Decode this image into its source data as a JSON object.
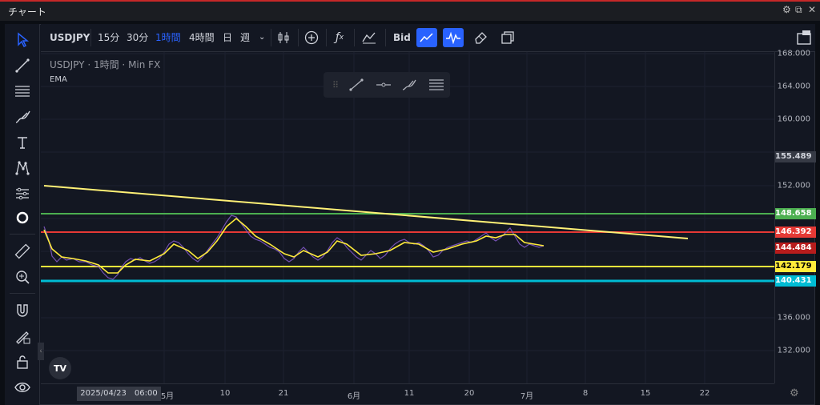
{
  "window": {
    "title": "チャート"
  },
  "toolbar": {
    "symbol": "USDJPY",
    "intervals": [
      "15分",
      "30分",
      "1時間",
      "4時間",
      "日",
      "週"
    ],
    "active_interval": "1時間",
    "bid_label": "Bid"
  },
  "legend": {
    "symbol": "USDJPY",
    "interval": "1時間",
    "source": "Min FX",
    "indicator": "EMA"
  },
  "price_axis": {
    "ticks": [
      "168.000",
      "164.000",
      "160.000",
      "152.000",
      "136.000",
      "132.000"
    ],
    "current_price": "155.489"
  },
  "levels": [
    {
      "label": "148.658",
      "color": "#4caf50"
    },
    {
      "label": "146.392",
      "color": "#e53935"
    },
    {
      "label": "144.484",
      "color": "#b71c1c"
    },
    {
      "label": "142.179",
      "color": "#ffeb3b"
    },
    {
      "label": "140.431",
      "color": "#00bcd4"
    }
  ],
  "time_axis": {
    "ticks": [
      "5月",
      "10",
      "21",
      "6月",
      "11",
      "20",
      "7月",
      "8",
      "15",
      "22"
    ],
    "crosshair_date": "2025/04/23　06:00"
  },
  "logo_text": "TV",
  "icons": {
    "left": [
      "cursor-icon",
      "trendline-icon",
      "fib-icon",
      "brush-icon",
      "text-icon",
      "pattern-icon",
      "measure-settings-icon",
      "circle-icon",
      "ruler-icon",
      "zoom-in-icon",
      "magnet-icon",
      "lock-drawing-icon",
      "unlock-icon",
      "eye-icon"
    ],
    "top": [
      "candle-icon",
      "add-indicator-icon",
      "fx-icon",
      "compare-icon",
      "line-chart-icon",
      "wave-icon",
      "eraser-icon",
      "clone-icon",
      "layout-icon"
    ]
  },
  "accent_color": "#2962ff"
}
